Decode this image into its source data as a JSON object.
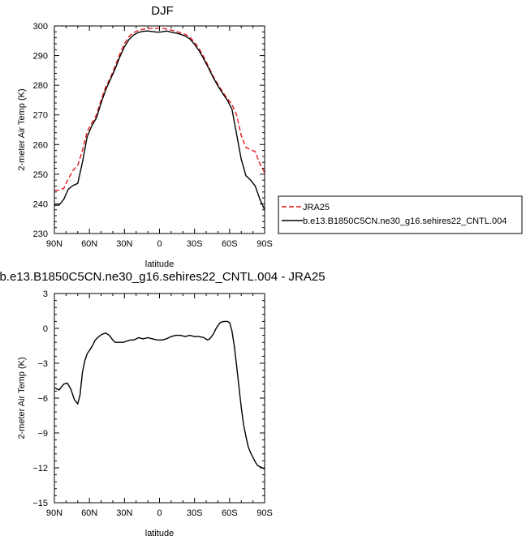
{
  "chart_data": [
    {
      "type": "line",
      "title": "DJF",
      "xlabel": "latitude",
      "ylabel": "2-meter Air Temp (K)",
      "xlim": [
        90,
        -90
      ],
      "ylim": [
        230,
        300
      ],
      "x_ticks": [
        {
          "value": 90,
          "label": "90N"
        },
        {
          "value": 60,
          "label": "60N"
        },
        {
          "value": 30,
          "label": "30N"
        },
        {
          "value": 0,
          "label": "0"
        },
        {
          "value": -30,
          "label": "30S"
        },
        {
          "value": -60,
          "label": "60S"
        },
        {
          "value": -90,
          "label": "90S"
        }
      ],
      "y_ticks": [
        230,
        240,
        250,
        260,
        270,
        280,
        290,
        300
      ],
      "grid": false,
      "legend": {
        "position": "right",
        "entries": [
          {
            "label": "JRA25",
            "color": "#e3191c",
            "dash": "dashed"
          },
          {
            "label": "b.e13.B1850C5CN.ne30_g16.sehires22_CNTL.004",
            "color": "#000000",
            "dash": "solid"
          }
        ]
      },
      "series": [
        {
          "name": "JRA25",
          "color": "#e3191c",
          "dash": "dashed",
          "x": [
            90,
            86,
            82,
            78,
            74,
            70,
            66,
            62,
            58,
            54,
            50,
            46,
            42,
            38,
            34,
            30,
            26,
            22,
            18,
            14,
            10,
            6,
            2,
            -2,
            -6,
            -10,
            -14,
            -18,
            -22,
            -26,
            -30,
            -34,
            -38,
            -42,
            -46,
            -50,
            -54,
            -58,
            -62,
            -66,
            -70,
            -74,
            -78,
            -82,
            -86,
            -90
          ],
          "values": [
            244.5,
            244.6,
            245.2,
            248.5,
            251.3,
            253.0,
            258.0,
            264.3,
            267.2,
            270.0,
            275.0,
            279.5,
            282.5,
            286.5,
            290.5,
            294.0,
            296.5,
            297.8,
            298.5,
            298.9,
            299.1,
            299.2,
            299.2,
            299.2,
            299.0,
            298.6,
            298.2,
            297.7,
            297.2,
            296.2,
            294.5,
            292.3,
            289.5,
            286.3,
            283.0,
            280.3,
            277.8,
            275.5,
            273.6,
            270.0,
            263.0,
            259.0,
            258.3,
            257.6,
            253.5,
            250.5
          ]
        },
        {
          "name": "b.e13.B1850C5CN.ne30_g16.sehires22_CNTL.004",
          "color": "#000000",
          "dash": "solid",
          "x": [
            90,
            86,
            82,
            78,
            74,
            70,
            66,
            62,
            58,
            54,
            50,
            46,
            42,
            38,
            34,
            30,
            26,
            22,
            18,
            14,
            10,
            6,
            2,
            -2,
            -6,
            -10,
            -14,
            -18,
            -22,
            -26,
            -30,
            -34,
            -38,
            -42,
            -46,
            -50,
            -54,
            -58,
            -62,
            -66,
            -70,
            -74,
            -78,
            -82,
            -86,
            -90
          ],
          "values": [
            239.5,
            239.6,
            241.5,
            245.0,
            246.2,
            246.9,
            254.0,
            262.5,
            266.3,
            269.0,
            274.0,
            278.5,
            282.0,
            285.5,
            289.5,
            293.0,
            295.5,
            297.0,
            297.8,
            298.2,
            298.3,
            298.1,
            297.9,
            298.0,
            298.3,
            297.9,
            297.6,
            297.2,
            296.6,
            295.6,
            293.8,
            291.6,
            288.8,
            285.8,
            282.6,
            279.8,
            277.3,
            275.0,
            272.0,
            263.5,
            255.0,
            249.5,
            248.0,
            246.0,
            241.5,
            238.0
          ]
        }
      ]
    },
    {
      "type": "line",
      "title": "b.e13.B1850C5CN.ne30_g16.sehires22_CNTL.004 - JRA25",
      "xlabel": "latitude",
      "ylabel": "2-meter Air Temp (K)",
      "xlim": [
        90,
        -90
      ],
      "ylim": [
        -15,
        3
      ],
      "x_ticks": [
        {
          "value": 90,
          "label": "90N"
        },
        {
          "value": 60,
          "label": "60N"
        },
        {
          "value": 30,
          "label": "30N"
        },
        {
          "value": 0,
          "label": "0"
        },
        {
          "value": -30,
          "label": "30S"
        },
        {
          "value": -60,
          "label": "60S"
        },
        {
          "value": -90,
          "label": "90S"
        }
      ],
      "y_ticks": [
        -15,
        -12,
        -9,
        -6,
        -3,
        0,
        3
      ],
      "grid": false,
      "series": [
        {
          "color": "#000000",
          "dash": "solid",
          "x": [
            90,
            86,
            82,
            79,
            76,
            73,
            70,
            68,
            66,
            64,
            62,
            60,
            58,
            55,
            52,
            49,
            46,
            43,
            40,
            38,
            36,
            34,
            31,
            28,
            25,
            22,
            18,
            14,
            10,
            6,
            2,
            -2,
            -6,
            -10,
            -14,
            -18,
            -22,
            -26,
            -30,
            -34,
            -38,
            -41,
            -43,
            -46,
            -49,
            -52,
            -55,
            -58,
            -60,
            -62,
            -64,
            -66,
            -68,
            -70,
            -72,
            -74,
            -76,
            -78,
            -80,
            -82,
            -84,
            -86,
            -88,
            -90
          ],
          "values": [
            -5.1,
            -5.3,
            -4.8,
            -4.7,
            -5.2,
            -6.1,
            -6.5,
            -5.7,
            -3.8,
            -2.8,
            -2.2,
            -1.9,
            -1.6,
            -1.0,
            -0.7,
            -0.5,
            -0.4,
            -0.6,
            -1.0,
            -1.2,
            -1.2,
            -1.2,
            -1.2,
            -1.1,
            -1.0,
            -1.0,
            -0.8,
            -0.9,
            -0.8,
            -0.9,
            -1.0,
            -1.0,
            -0.9,
            -0.7,
            -0.6,
            -0.6,
            -0.7,
            -0.6,
            -0.7,
            -0.7,
            -0.8,
            -1.0,
            -0.9,
            -0.5,
            0.1,
            0.5,
            0.6,
            0.6,
            0.5,
            -0.2,
            -1.5,
            -3.2,
            -5.0,
            -6.8,
            -8.3,
            -9.3,
            -10.2,
            -10.7,
            -11.1,
            -11.5,
            -11.8,
            -11.9,
            -12.0,
            -12.1
          ]
        }
      ]
    }
  ]
}
